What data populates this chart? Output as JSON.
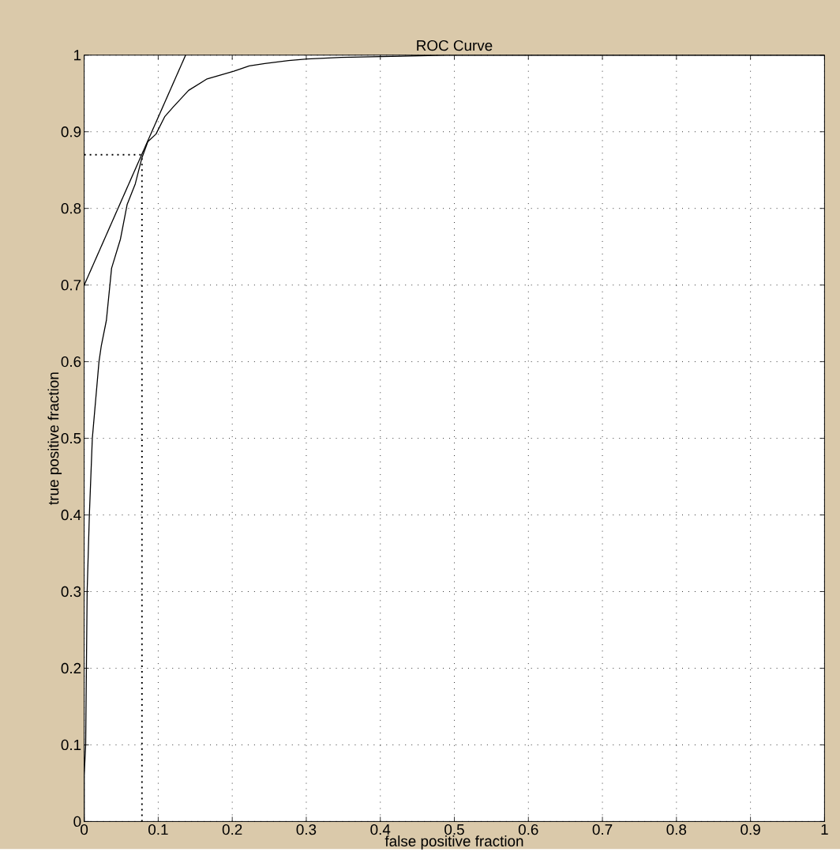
{
  "chart_data": {
    "type": "line",
    "title": "ROC Curve",
    "xlabel": "false positive fraction",
    "ylabel": "true positive fraction",
    "series": [
      {
        "color": "#000000",
        "line_style": "solid",
        "x": [
          0,
          0,
          0.002,
          0.003,
          0.004,
          0.007,
          0.011,
          0.02,
          0.023,
          0.03,
          0.037,
          0.049,
          0.058,
          0.069,
          0.078,
          0.086,
          0.097,
          0.109,
          0.12,
          0.141,
          0.166,
          0.202,
          0.223,
          0.244,
          0.276,
          0.301,
          0.347,
          0.4,
          0.489,
          1
        ],
        "values": [
          0,
          0.06,
          0.1,
          0.2,
          0.3,
          0.4,
          0.5,
          0.6,
          0.62,
          0.654,
          0.722,
          0.76,
          0.805,
          0.832,
          0.866,
          0.887,
          0.897,
          0.92,
          0.932,
          0.954,
          0.969,
          0.979,
          0.986,
          0.989,
          0.993,
          0.995,
          0.997,
          0.998,
          1,
          1
        ]
      },
      {
        "color": "#000000",
        "line_style": "solid",
        "x": [
          0,
          0.137
        ],
        "values": [
          0.7,
          1
        ]
      },
      {
        "color": "#000000",
        "line_style": "dotted",
        "x": [
          0,
          0.078
        ],
        "values": [
          0.87,
          0.87
        ]
      },
      {
        "color": "#000000",
        "line_style": "dotted",
        "x": [
          0.078,
          0.078
        ],
        "values": [
          0,
          0.87
        ]
      }
    ],
    "xlim": [
      0,
      1
    ],
    "ylim": [
      0,
      1
    ],
    "xticks": [
      0,
      0.1,
      0.2,
      0.3,
      0.4,
      0.5,
      0.6,
      0.7,
      0.8,
      0.9,
      1
    ],
    "yticks": [
      0,
      0.1,
      0.2,
      0.3,
      0.4,
      0.5,
      0.6,
      0.7,
      0.8,
      0.9,
      1
    ],
    "grid": true,
    "marker": "none"
  }
}
